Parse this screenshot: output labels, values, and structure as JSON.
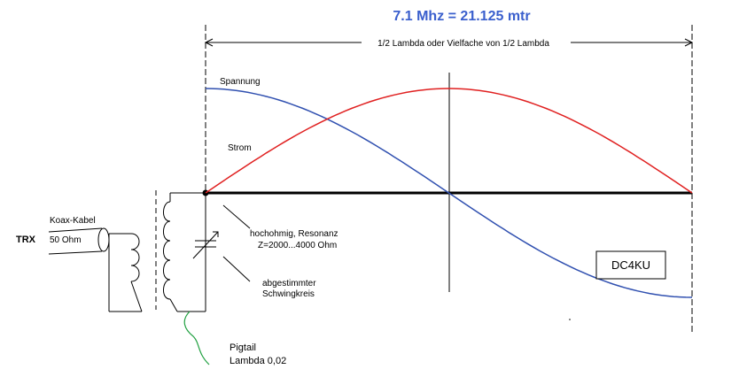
{
  "title": "7.1 Mhz = 21.125 mtr",
  "dimension_label": "1/2 Lambda oder Vielfache von 1/2 Lambda",
  "voltage_label": "Spannung",
  "current_label": "Strom",
  "impedance_label": {
    "line1": "hochohmig, Resonanz",
    "line2": "Z=2000...4000 Ohm"
  },
  "tank_label": {
    "line1": "abgestimmter",
    "line2": "Schwingkreis"
  },
  "coax_label": {
    "line1": "Koax-Kabel",
    "line2": "50 Ohm"
  },
  "trx_label": "TRX",
  "pigtail_label": {
    "line1": "Pigtail",
    "line2": "Lambda 0,02"
  },
  "callsign_box": "DC4KU",
  "colors": {
    "title": "#3a5fcd",
    "voltage_curve": "#3050b0",
    "current_curve": "#e02020",
    "pigtail": "#20a040",
    "lines": "#000000"
  }
}
